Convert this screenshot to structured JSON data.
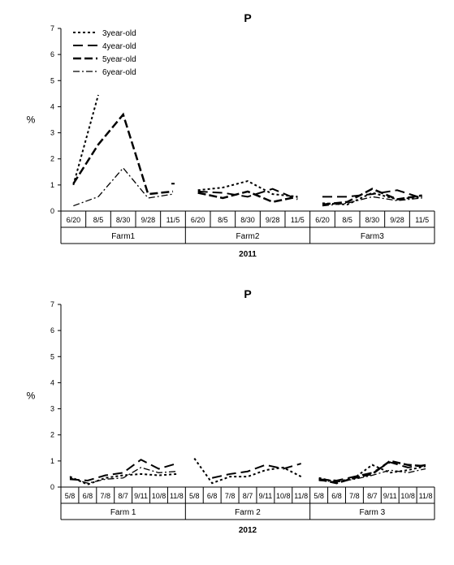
{
  "top_chart": {
    "title": "P",
    "title_fontsize": 14,
    "title_fontweight": "bold",
    "ylabel": "%",
    "label_fontsize": 12,
    "ylim": [
      0,
      7
    ],
    "ytick_step": 1,
    "legend": {
      "items": [
        {
          "label": "3year-old",
          "dash": "3,3",
          "width": 2
        },
        {
          "label": "4year-old",
          "dash": "12,6",
          "width": 2
        },
        {
          "label": "5year-old",
          "dash": "10,4",
          "width": 2.5
        },
        {
          "label": "6year-old",
          "dash": "8,3,2,3",
          "width": 1.3
        }
      ],
      "fontsize": 10
    },
    "x_groups": [
      "Farm1",
      "Farm2",
      "Farm3"
    ],
    "x_ticks_per_group": [
      "6/20",
      "8/5",
      "8/30",
      "9/28",
      "11/5"
    ],
    "bottom_label": "2011",
    "series": [
      {
        "name": "3year-old",
        "dash": "3,3",
        "width": 2,
        "values": [
          [
            1.0,
            4.45,
            null,
            null,
            null
          ],
          [
            0.8,
            0.9,
            1.15,
            0.65,
            0.55
          ],
          [
            0.3,
            0.25,
            0.7,
            0.45,
            0.55
          ]
        ]
      },
      {
        "name": "4year-old",
        "dash": "12,6",
        "width": 2,
        "values": [
          [
            null,
            null,
            null,
            null,
            1.05
          ],
          [
            0.75,
            0.7,
            0.55,
            0.85,
            0.45
          ],
          [
            0.55,
            0.55,
            0.65,
            0.8,
            0.5
          ]
        ]
      },
      {
        "name": "5year-old",
        "dash": "10,4",
        "width": 2.5,
        "values": [
          [
            1.05,
            2.55,
            3.7,
            0.65,
            0.75
          ],
          [
            0.7,
            0.5,
            0.75,
            0.35,
            0.55
          ],
          [
            0.25,
            0.35,
            0.85,
            0.45,
            0.6
          ]
        ]
      },
      {
        "name": "6year-old",
        "dash": "8,3,2,3",
        "width": 1.3,
        "values": [
          [
            0.2,
            0.55,
            1.65,
            0.5,
            0.65
          ],
          [
            null,
            null,
            null,
            null,
            null
          ],
          [
            0.2,
            0.3,
            0.55,
            0.4,
            0.5
          ]
        ]
      }
    ],
    "axis_color": "#000000",
    "grid_color": "#000000",
    "background": "#ffffff",
    "tick_fontsize": 9
  },
  "bottom_chart": {
    "title": "P",
    "title_fontsize": 14,
    "title_fontweight": "bold",
    "ylabel": "%",
    "label_fontsize": 12,
    "ylim": [
      0,
      7
    ],
    "ytick_step": 1,
    "x_groups": [
      "Farm 1",
      "Farm 2",
      "Farm 3"
    ],
    "x_ticks_per_group": [
      "5/8",
      "6/8",
      "7/8",
      "8/7",
      "9/11",
      "10/8",
      "11/8"
    ],
    "bottom_label": "2012",
    "series": [
      {
        "name": "3year-old",
        "dash": "3,3",
        "width": 2,
        "values": [
          [
            0.4,
            0.1,
            0.35,
            0.45,
            0.5,
            0.45,
            0.5
          ],
          [
            1.1,
            0.15,
            0.4,
            0.4,
            0.65,
            0.75,
            0.4
          ],
          [
            0.35,
            0.2,
            0.35,
            0.85,
            0.55,
            0.65,
            0.8
          ]
        ]
      },
      {
        "name": "4year-old",
        "dash": "12,6",
        "width": 2,
        "values": [
          [
            0.3,
            0.25,
            0.45,
            0.55,
            1.05,
            0.7,
            0.9
          ],
          [
            null,
            0.35,
            0.5,
            0.6,
            0.85,
            0.7,
            0.9
          ],
          [
            0.3,
            0.25,
            0.4,
            0.55,
            0.95,
            0.75,
            0.85
          ]
        ]
      },
      {
        "name": "5year-old",
        "dash": "10,4",
        "width": 2.5,
        "values": [
          [
            null,
            null,
            null,
            null,
            null,
            null,
            null
          ],
          [
            null,
            null,
            null,
            null,
            null,
            null,
            null
          ],
          [
            0.3,
            0.15,
            0.35,
            0.5,
            1.0,
            0.85,
            0.8
          ]
        ]
      },
      {
        "name": "6year-old",
        "dash": "8,3,2,3",
        "width": 1.3,
        "values": [
          [
            0.35,
            0.15,
            0.3,
            0.35,
            0.75,
            0.55,
            0.6
          ],
          [
            null,
            null,
            null,
            null,
            null,
            null,
            null
          ],
          [
            0.25,
            0.2,
            0.3,
            0.45,
            0.65,
            0.55,
            0.7
          ]
        ]
      }
    ],
    "axis_color": "#000000",
    "background": "#ffffff",
    "tick_fontsize": 9
  }
}
